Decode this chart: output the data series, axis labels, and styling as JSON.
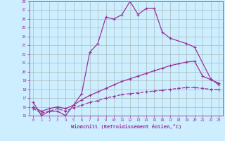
{
  "xlabel": "Windchill (Refroidissement éolien,°C)",
  "xlim": [
    -0.5,
    23.5
  ],
  "ylim": [
    15,
    28
  ],
  "yticks": [
    15,
    16,
    17,
    18,
    19,
    20,
    21,
    22,
    23,
    24,
    25,
    26,
    27,
    28
  ],
  "xticks": [
    0,
    1,
    2,
    3,
    4,
    5,
    6,
    7,
    8,
    9,
    10,
    11,
    12,
    13,
    14,
    15,
    16,
    17,
    18,
    19,
    20,
    21,
    22,
    23
  ],
  "bg_color": "#cceeff",
  "line_color": "#993399",
  "line1_x": [
    0,
    1,
    2,
    3,
    4,
    5,
    6,
    7,
    8,
    9,
    10,
    11,
    12,
    13,
    14,
    15,
    16,
    17,
    19,
    20,
    22,
    23
  ],
  "line1_y": [
    16.5,
    15.0,
    15.5,
    15.5,
    15.0,
    16.2,
    17.5,
    22.2,
    23.2,
    26.2,
    26.0,
    26.5,
    28.0,
    26.5,
    27.2,
    27.2,
    24.5,
    23.8,
    23.2,
    22.8,
    19.2,
    18.5
  ],
  "line2_x": [
    0,
    1,
    2,
    3,
    4,
    5,
    6,
    7,
    8,
    9,
    10,
    11,
    12,
    13,
    14,
    15,
    16,
    17,
    18,
    19,
    20,
    21,
    22,
    23
  ],
  "line2_y": [
    16.0,
    15.5,
    15.8,
    16.0,
    15.8,
    16.2,
    16.8,
    17.3,
    17.7,
    18.1,
    18.5,
    18.9,
    19.2,
    19.5,
    19.8,
    20.1,
    20.4,
    20.7,
    20.9,
    21.1,
    21.2,
    19.5,
    19.1,
    18.7
  ],
  "line3_x": [
    0,
    1,
    2,
    3,
    4,
    5,
    6,
    7,
    8,
    9,
    10,
    11,
    12,
    13,
    14,
    15,
    16,
    17,
    18,
    19,
    20,
    21,
    22,
    23
  ],
  "line3_y": [
    15.8,
    15.3,
    15.5,
    15.8,
    15.5,
    15.9,
    16.2,
    16.5,
    16.7,
    17.0,
    17.2,
    17.4,
    17.5,
    17.6,
    17.7,
    17.8,
    17.9,
    18.0,
    18.1,
    18.2,
    18.2,
    18.1,
    18.0,
    18.0
  ]
}
